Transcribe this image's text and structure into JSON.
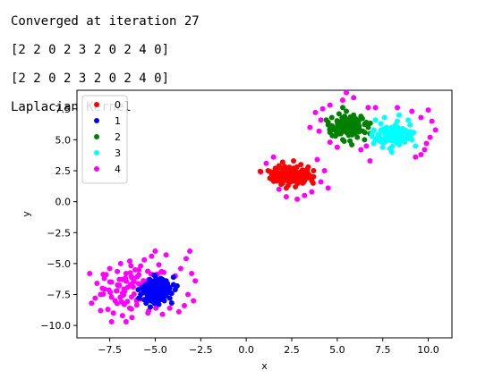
{
  "console_lines": [
    "Converged at iteration 27",
    "[2 2 0 2 3 2 0 2 4 0]",
    "[2 2 0 2 3 2 0 2 4 0]",
    "Laplacian Kernel"
  ],
  "chart_data": {
    "type": "scatter",
    "title": "",
    "xlabel": "x",
    "ylabel": "y",
    "xlim": [
      -9.3,
      11.3
    ],
    "ylim": [
      -11.0,
      9.0
    ],
    "xticks": [
      -7.5,
      -5.0,
      -2.5,
      0.0,
      2.5,
      5.0,
      7.5,
      10.0
    ],
    "xtick_labels": [
      "−7.5",
      "−5.0",
      "−2.5",
      "0.0",
      "2.5",
      "5.0",
      "7.5",
      "10.0"
    ],
    "yticks": [
      -10.0,
      -7.5,
      -5.0,
      -2.5,
      0.0,
      2.5,
      5.0,
      7.5
    ],
    "ytick_labels": [
      "−10.0",
      "−7.5",
      "−5.0",
      "−2.5",
      "0.0",
      "2.5",
      "5.0",
      "7.5"
    ],
    "grid": false,
    "legend": "top-left",
    "series": [
      {
        "name": "0",
        "color": "#ff0000",
        "center": [
          2.4,
          2.1
        ],
        "spread": [
          0.85,
          0.55
        ],
        "points": [
          [
            1.2,
            2.5
          ],
          [
            1.5,
            1.8
          ],
          [
            1.8,
            2.9
          ],
          [
            2.0,
            1.5
          ],
          [
            2.2,
            2.3
          ],
          [
            2.4,
            1.9
          ],
          [
            2.6,
            2.7
          ],
          [
            2.8,
            1.6
          ],
          [
            3.0,
            2.4
          ],
          [
            3.2,
            2.0
          ],
          [
            3.4,
            2.8
          ],
          [
            3.6,
            1.7
          ],
          [
            1.4,
            2.2
          ],
          [
            1.7,
            2.0
          ],
          [
            2.1,
            2.8
          ],
          [
            2.5,
            2.5
          ],
          [
            2.9,
            2.1
          ],
          [
            3.3,
            2.3
          ],
          [
            1.9,
            1.7
          ],
          [
            2.3,
            1.3
          ],
          [
            2.7,
            1.2
          ],
          [
            3.1,
            1.5
          ],
          [
            3.5,
            2.1
          ],
          [
            1.6,
            2.7
          ],
          [
            2.0,
            3.2
          ],
          [
            2.6,
            3.3
          ],
          [
            3.0,
            3.0
          ],
          [
            3.7,
            2.5
          ],
          [
            1.3,
            1.9
          ],
          [
            2.2,
            1.1
          ]
        ]
      },
      {
        "name": "1",
        "color": "#0000ff",
        "center": [
          -4.9,
          -7.2
        ],
        "spread": [
          0.65,
          0.7
        ],
        "points": [
          [
            -5.8,
            -7.5
          ],
          [
            -5.5,
            -6.8
          ],
          [
            -5.2,
            -7.9
          ],
          [
            -5.0,
            -6.5
          ],
          [
            -4.8,
            -7.2
          ],
          [
            -4.6,
            -6.9
          ],
          [
            -4.4,
            -7.6
          ],
          [
            -4.2,
            -7.0
          ],
          [
            -4.0,
            -6.7
          ],
          [
            -5.6,
            -7.2
          ],
          [
            -5.3,
            -6.3
          ],
          [
            -5.1,
            -8.1
          ],
          [
            -4.9,
            -7.7
          ],
          [
            -4.7,
            -6.2
          ],
          [
            -4.5,
            -8.0
          ],
          [
            -4.3,
            -7.3
          ],
          [
            -5.4,
            -7.9
          ],
          [
            -5.7,
            -6.9
          ],
          [
            -4.1,
            -7.4
          ],
          [
            -3.9,
            -7.1
          ],
          [
            -5.0,
            -6.0
          ],
          [
            -4.8,
            -8.3
          ],
          [
            -4.6,
            -7.4
          ],
          [
            -5.2,
            -7.0
          ],
          [
            -4.4,
            -6.4
          ],
          [
            -5.5,
            -8.2
          ],
          [
            -4.2,
            -7.8
          ],
          [
            -3.8,
            -6.8
          ],
          [
            -5.9,
            -7.8
          ],
          [
            -4.0,
            -6.1
          ]
        ]
      },
      {
        "name": "2",
        "color": "#008000",
        "center": [
          5.6,
          6.1
        ],
        "spread": [
          0.7,
          0.55
        ],
        "points": [
          [
            4.5,
            6.2
          ],
          [
            4.8,
            5.8
          ],
          [
            5.0,
            6.5
          ],
          [
            5.2,
            5.5
          ],
          [
            5.4,
            6.9
          ],
          [
            5.6,
            6.0
          ],
          [
            5.8,
            5.4
          ],
          [
            6.0,
            6.6
          ],
          [
            6.2,
            6.1
          ],
          [
            6.4,
            5.7
          ],
          [
            6.6,
            6.4
          ],
          [
            4.7,
            6.8
          ],
          [
            5.1,
            7.1
          ],
          [
            5.5,
            7.3
          ],
          [
            5.9,
            7.0
          ],
          [
            6.3,
            6.9
          ],
          [
            4.9,
            5.3
          ],
          [
            5.3,
            5.0
          ],
          [
            5.7,
            4.9
          ],
          [
            6.1,
            5.2
          ],
          [
            6.5,
            5.0
          ],
          [
            4.6,
            5.6
          ],
          [
            5.0,
            6.0
          ],
          [
            5.6,
            6.5
          ],
          [
            6.0,
            5.8
          ],
          [
            6.7,
            6.0
          ],
          [
            4.4,
            6.6
          ],
          [
            5.8,
            4.6
          ],
          [
            5.3,
            7.6
          ],
          [
            6.8,
            5.5
          ]
        ]
      },
      {
        "name": "3",
        "color": "#00ffff",
        "center": [
          8.1,
          5.4
        ],
        "spread": [
          0.75,
          0.6
        ],
        "points": [
          [
            7.0,
            5.8
          ],
          [
            7.2,
            5.1
          ],
          [
            7.4,
            6.3
          ],
          [
            7.6,
            4.8
          ],
          [
            7.8,
            5.6
          ],
          [
            8.0,
            6.0
          ],
          [
            8.2,
            5.2
          ],
          [
            8.4,
            4.6
          ],
          [
            8.6,
            5.9
          ],
          [
            8.8,
            5.4
          ],
          [
            9.0,
            6.2
          ],
          [
            7.1,
            6.6
          ],
          [
            7.5,
            4.4
          ],
          [
            7.9,
            4.3
          ],
          [
            8.3,
            6.5
          ],
          [
            8.7,
            4.8
          ],
          [
            9.1,
            5.0
          ],
          [
            7.3,
            5.4
          ],
          [
            7.7,
            6.0
          ],
          [
            8.1,
            4.9
          ],
          [
            8.5,
            5.6
          ],
          [
            8.9,
            6.6
          ],
          [
            9.2,
            5.6
          ],
          [
            7.0,
            4.7
          ],
          [
            7.6,
            6.8
          ],
          [
            8.0,
            4.0
          ],
          [
            8.4,
            7.0
          ],
          [
            9.3,
            4.5
          ],
          [
            6.9,
            5.3
          ],
          [
            8.2,
            6.2
          ]
        ]
      },
      {
        "name": "4",
        "color": "#ff00ff",
        "center": [
          -6.0,
          -7.0
        ],
        "spread": [
          1.6,
          1.3
        ],
        "points": [
          [
            -8.5,
            -8.2
          ],
          [
            -8.0,
            -7.5
          ],
          [
            -7.8,
            -6.2
          ],
          [
            -7.5,
            -5.4
          ],
          [
            -7.2,
            -8.0
          ],
          [
            -7.0,
            -6.8
          ],
          [
            -6.8,
            -7.4
          ],
          [
            -6.6,
            -5.8
          ],
          [
            -6.4,
            -8.6
          ],
          [
            -6.2,
            -6.5
          ],
          [
            -6.0,
            -7.9
          ],
          [
            -5.8,
            -5.2
          ],
          [
            -7.9,
            -7.0
          ],
          [
            -7.6,
            -8.7
          ],
          [
            -7.4,
            -6.5
          ],
          [
            -7.1,
            -7.2
          ],
          [
            -6.9,
            -5.0
          ],
          [
            -6.7,
            -8.3
          ],
          [
            -6.5,
            -6.9
          ],
          [
            -6.3,
            -7.7
          ],
          [
            -8.2,
            -6.6
          ],
          [
            -8.3,
            -7.8
          ],
          [
            -7.7,
            -5.9
          ],
          [
            -7.3,
            -9.0
          ],
          [
            -6.1,
            -5.5
          ],
          [
            -5.6,
            -4.7
          ],
          [
            -5.2,
            -4.4
          ],
          [
            -4.8,
            -5.1
          ],
          [
            -3.6,
            -5.4
          ],
          [
            -3.3,
            -4.6
          ],
          [
            -3.0,
            -5.8
          ],
          [
            -2.8,
            -6.4
          ],
          [
            -3.4,
            -8.4
          ],
          [
            -3.7,
            -8.9
          ],
          [
            -4.2,
            -8.6
          ],
          [
            -4.6,
            -9.1
          ],
          [
            -5.4,
            -9.0
          ],
          [
            -6.8,
            -9.2
          ],
          [
            -5.9,
            -5.9
          ],
          [
            -5.0,
            -4.0
          ],
          [
            -8.6,
            -5.8
          ],
          [
            -4.4,
            -4.3
          ],
          [
            -3.1,
            -4.0
          ],
          [
            -7.4,
            -9.7
          ],
          [
            -6.4,
            -4.8
          ],
          [
            -8.0,
            -8.8
          ],
          [
            -6.6,
            -9.7
          ],
          [
            -3.9,
            -6.0
          ],
          [
            -3.2,
            -7.5
          ],
          [
            -2.9,
            -8.0
          ],
          [
            1.8,
            1.0
          ],
          [
            3.2,
            0.5
          ],
          [
            3.6,
            0.8
          ],
          [
            4.1,
            1.6
          ],
          [
            4.3,
            2.5
          ],
          [
            0.8,
            2.4
          ],
          [
            1.1,
            3.1
          ],
          [
            1.5,
            3.6
          ],
          [
            3.9,
            3.4
          ],
          [
            4.5,
            1.1
          ],
          [
            2.8,
            0.2
          ],
          [
            2.2,
            0.4
          ],
          [
            4.0,
            5.7
          ],
          [
            4.1,
            6.6
          ],
          [
            3.5,
            6.0
          ],
          [
            3.8,
            7.2
          ],
          [
            4.2,
            7.5
          ],
          [
            4.6,
            7.8
          ],
          [
            5.3,
            8.2
          ],
          [
            5.9,
            8.4
          ],
          [
            6.7,
            7.6
          ],
          [
            7.1,
            7.6
          ],
          [
            8.3,
            7.6
          ],
          [
            9.1,
            7.3
          ],
          [
            9.6,
            6.8
          ],
          [
            10.2,
            6.5
          ],
          [
            10.4,
            5.8
          ],
          [
            10.1,
            5.2
          ],
          [
            9.9,
            4.7
          ],
          [
            9.8,
            4.2
          ],
          [
            9.6,
            3.8
          ],
          [
            9.3,
            3.6
          ],
          [
            6.3,
            4.2
          ],
          [
            6.6,
            4.5
          ],
          [
            6.8,
            3.3
          ],
          [
            5.0,
            4.4
          ],
          [
            4.6,
            4.8
          ],
          [
            10.0,
            7.4
          ],
          [
            5.5,
            8.8
          ]
        ]
      }
    ]
  }
}
